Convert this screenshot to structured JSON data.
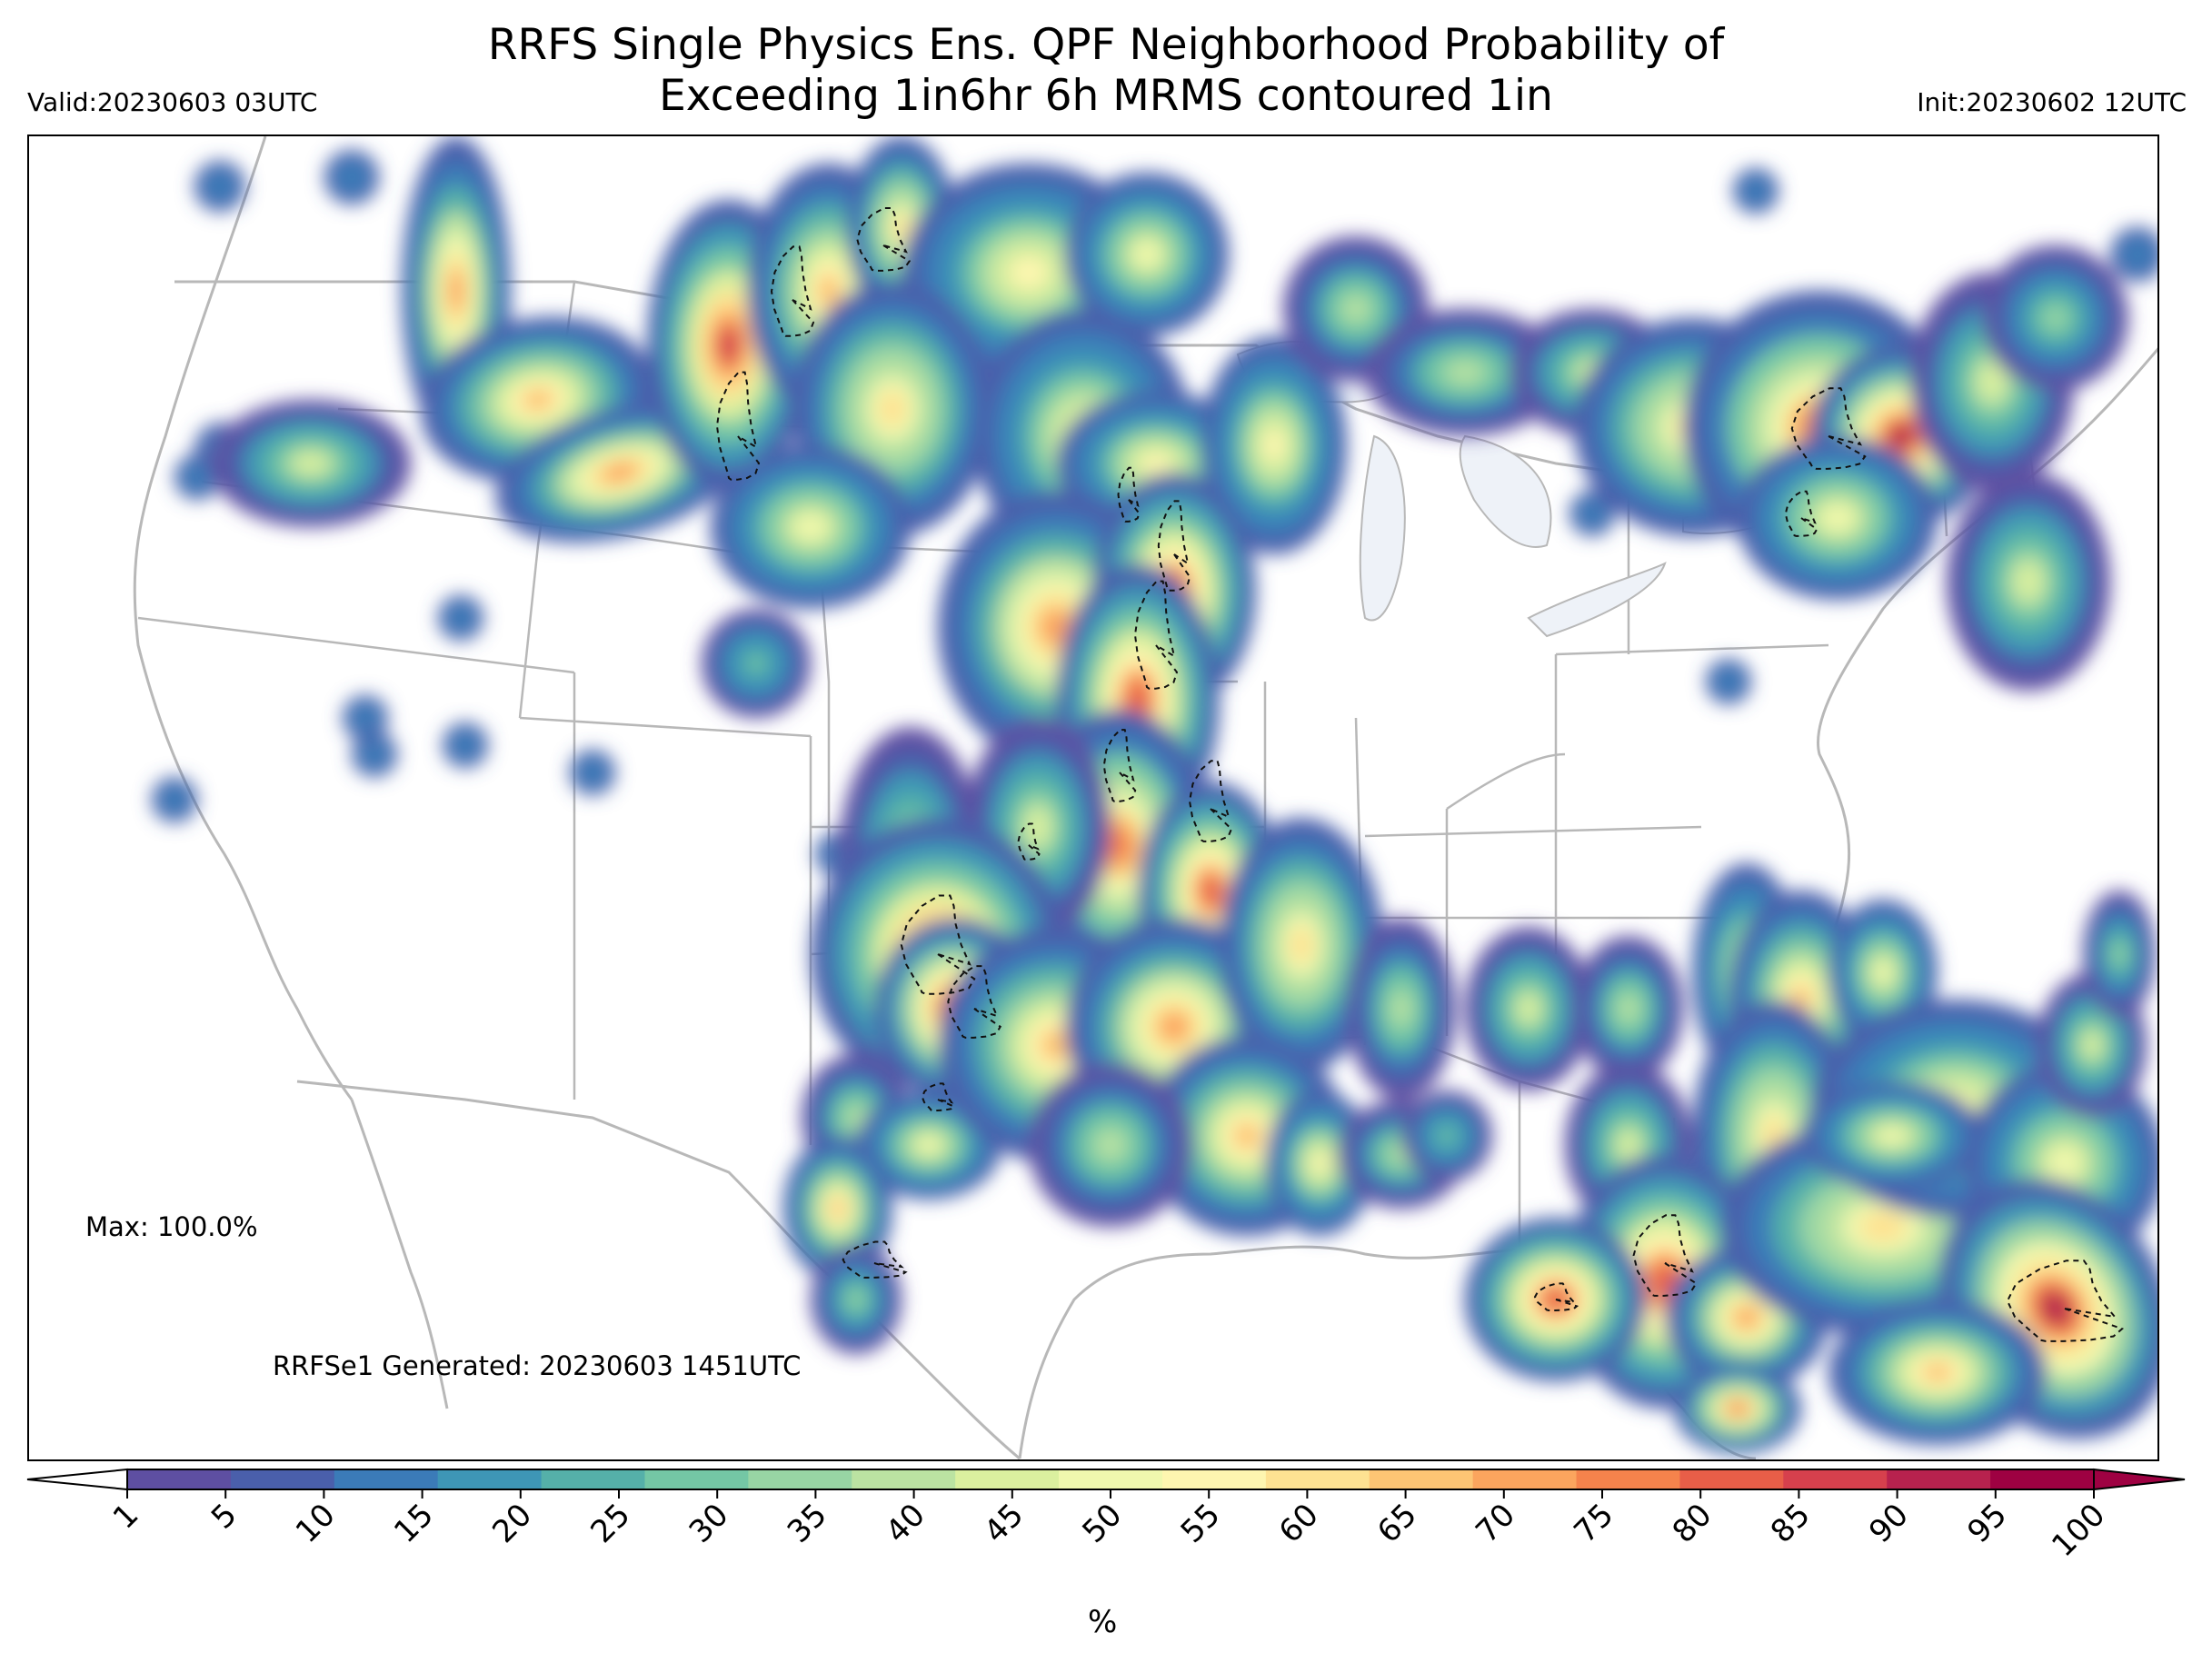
{
  "header": {
    "title_line1": "RRFS Single Physics Ens. QPF Neighborhood Probability of",
    "title_line2": "Exceeding 1in6hr 6h MRMS contoured 1in",
    "valid": "Valid:20230603 03UTC",
    "init": "Init:20230602 12UTC"
  },
  "annotations": {
    "max": "Max: 100.0%",
    "generated": "RRFSe1 Generated: 20230603 1451UTC"
  },
  "colorbar": {
    "ticks": [
      "1",
      "5",
      "10",
      "15",
      "20",
      "25",
      "30",
      "35",
      "40",
      "45",
      "50",
      "55",
      "60",
      "65",
      "70",
      "75",
      "80",
      "85",
      "90",
      "95",
      "100"
    ],
    "colors": [
      "#5e4fa2",
      "#4a5fab",
      "#3b7bb8",
      "#3e96b6",
      "#55b0a9",
      "#74c7a5",
      "#98d5a4",
      "#bbe3a2",
      "#dbf09f",
      "#f0f8ae",
      "#fef6b0",
      "#fee292",
      "#fdc574",
      "#fba55e",
      "#f5834c",
      "#e85e48",
      "#d6404d",
      "#b7224e",
      "#9e0142"
    ],
    "extend_min_color": "#ffffff",
    "extend_max_color": "#9e0142",
    "unit_label": "%"
  },
  "map_style": {
    "boundary_color": "#b8b8b8",
    "lake_color": "#eef2f8",
    "contour_color": "#111111"
  }
}
